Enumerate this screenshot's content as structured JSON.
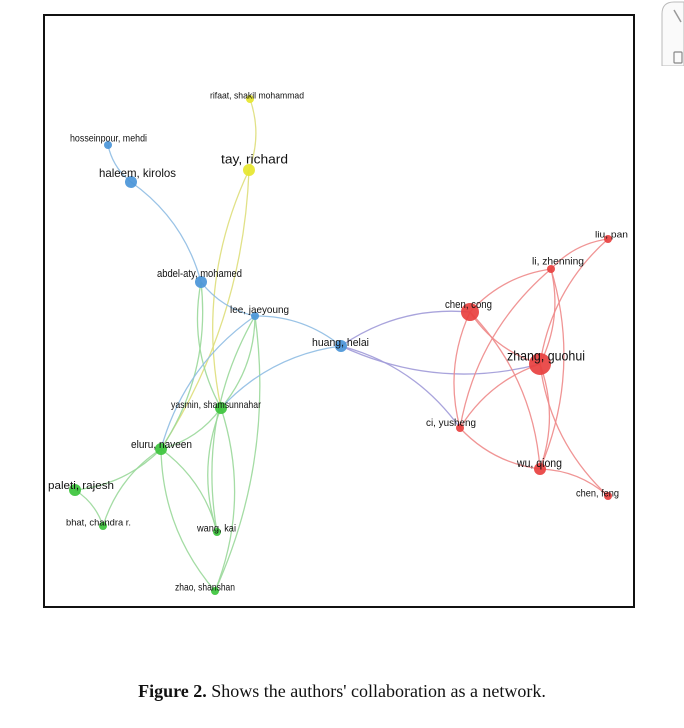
{
  "network": {
    "colors": {
      "yellow": "#e6e62e",
      "blue": "#4a95d8",
      "green": "#3cc43c",
      "red": "#e8403f",
      "edge_blue": "#8fbde3",
      "edge_green": "#9ad89a",
      "edge_yellow": "#dede7a",
      "edge_red": "#ee8a8a",
      "edge_purple": "#a09ad8"
    },
    "nodes": [
      {
        "id": "rifaat",
        "label": "rifaat, shakil mohammad",
        "cluster": "yellow",
        "weight": 1
      },
      {
        "id": "tay",
        "label": "tay, richard",
        "cluster": "yellow",
        "weight": 2
      },
      {
        "id": "hosseinpour",
        "label": "hosseinpour, mehdi",
        "cluster": "blue",
        "weight": 1
      },
      {
        "id": "haleem",
        "label": "haleem, kirolos",
        "cluster": "blue",
        "weight": 2
      },
      {
        "id": "abdelaty",
        "label": "abdel-aty, mohamed",
        "cluster": "blue",
        "weight": 2
      },
      {
        "id": "lee",
        "label": "lee, jaeyoung",
        "cluster": "blue",
        "weight": 1
      },
      {
        "id": "huang",
        "label": "huang, helai",
        "cluster": "blue",
        "weight": 2
      },
      {
        "id": "yasmin",
        "label": "yasmin, shamsunnahar",
        "cluster": "green",
        "weight": 2
      },
      {
        "id": "eluru",
        "label": "eluru, naveen",
        "cluster": "green",
        "weight": 2
      },
      {
        "id": "paleti",
        "label": "paleti, rajesh",
        "cluster": "green",
        "weight": 2
      },
      {
        "id": "bhat",
        "label": "bhat, chandra r.",
        "cluster": "green",
        "weight": 1
      },
      {
        "id": "wang",
        "label": "wang, kai",
        "cluster": "green",
        "weight": 1
      },
      {
        "id": "zhao",
        "label": "zhao, shanshan",
        "cluster": "green",
        "weight": 1
      },
      {
        "id": "chen_cong",
        "label": "chen, cong",
        "cluster": "red",
        "weight": 3
      },
      {
        "id": "zhang",
        "label": "zhang, guohui",
        "cluster": "red",
        "weight": 4
      },
      {
        "id": "li",
        "label": "li, zhenning",
        "cluster": "red",
        "weight": 1
      },
      {
        "id": "liu",
        "label": "liu, pan",
        "cluster": "red",
        "weight": 1
      },
      {
        "id": "ci",
        "label": "ci, yusheng",
        "cluster": "red",
        "weight": 1
      },
      {
        "id": "wu",
        "label": "wu, qiong",
        "cluster": "red",
        "weight": 2
      },
      {
        "id": "chen_feng",
        "label": "chen, feng",
        "cluster": "red",
        "weight": 1
      }
    ],
    "edges": [
      [
        "rifaat",
        "tay",
        "edge_yellow"
      ],
      [
        "tay",
        "yasmin",
        "edge_yellow"
      ],
      [
        "tay",
        "eluru",
        "edge_yellow"
      ],
      [
        "hosseinpour",
        "haleem",
        "edge_blue"
      ],
      [
        "haleem",
        "abdelaty",
        "edge_blue"
      ],
      [
        "abdelaty",
        "lee",
        "edge_blue"
      ],
      [
        "abdelaty",
        "eluru",
        "edge_green"
      ],
      [
        "abdelaty",
        "yasmin",
        "edge_green"
      ],
      [
        "lee",
        "huang",
        "edge_blue"
      ],
      [
        "lee",
        "eluru",
        "edge_blue"
      ],
      [
        "lee",
        "yasmin",
        "edge_green"
      ],
      [
        "lee",
        "wang",
        "edge_green"
      ],
      [
        "lee",
        "zhao",
        "edge_green"
      ],
      [
        "huang",
        "yasmin",
        "edge_blue"
      ],
      [
        "huang",
        "chen_cong",
        "edge_purple"
      ],
      [
        "huang",
        "zhang",
        "edge_purple"
      ],
      [
        "huang",
        "ci",
        "edge_purple"
      ],
      [
        "eluru",
        "yasmin",
        "edge_green"
      ],
      [
        "eluru",
        "paleti",
        "edge_green"
      ],
      [
        "eluru",
        "bhat",
        "edge_green"
      ],
      [
        "eluru",
        "wang",
        "edge_green"
      ],
      [
        "eluru",
        "zhao",
        "edge_green"
      ],
      [
        "paleti",
        "bhat",
        "edge_green"
      ],
      [
        "yasmin",
        "wang",
        "edge_green"
      ],
      [
        "yasmin",
        "zhao",
        "edge_green"
      ],
      [
        "chen_cong",
        "zhang",
        "edge_red"
      ],
      [
        "chen_cong",
        "li",
        "edge_red"
      ],
      [
        "chen_cong",
        "ci",
        "edge_red"
      ],
      [
        "chen_cong",
        "wu",
        "edge_red"
      ],
      [
        "zhang",
        "li",
        "edge_red"
      ],
      [
        "zhang",
        "liu",
        "edge_red"
      ],
      [
        "zhang",
        "ci",
        "edge_red"
      ],
      [
        "zhang",
        "wu",
        "edge_red"
      ],
      [
        "zhang",
        "chen_feng",
        "edge_red"
      ],
      [
        "li",
        "liu",
        "edge_red"
      ],
      [
        "li",
        "ci",
        "edge_red"
      ],
      [
        "li",
        "wu",
        "edge_red"
      ],
      [
        "ci",
        "wu",
        "edge_red"
      ],
      [
        "wu",
        "chen_feng",
        "edge_red"
      ]
    ]
  },
  "caption": {
    "label": "Figure 2.",
    "text": " Shows the authors' collaboration as a network."
  }
}
